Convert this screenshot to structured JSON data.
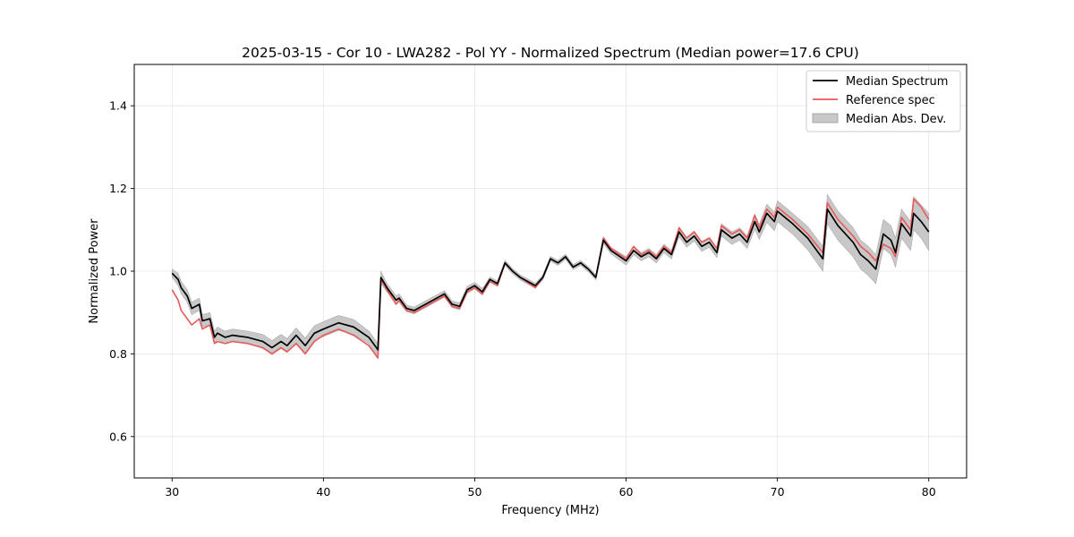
{
  "chart_data": {
    "type": "line",
    "title": "2025-03-15 - Cor 10 - LWA282 - Pol YY - Normalized Spectrum (Median power=17.6 CPU)",
    "xlabel": "Frequency (MHz)",
    "ylabel": "Normalized Power",
    "xlim": [
      27.5,
      82.5
    ],
    "ylim": [
      0.5,
      1.5
    ],
    "xticks": [
      30,
      40,
      50,
      60,
      70,
      80
    ],
    "yticks": [
      0.6,
      0.8,
      1.0,
      1.2,
      1.4
    ],
    "xtick_labels": [
      "30",
      "40",
      "50",
      "60",
      "70",
      "80"
    ],
    "ytick_labels": [
      "0.6",
      "0.8",
      "1.0",
      "1.2",
      "1.4"
    ],
    "grid": true,
    "legend_position": "top-right",
    "series": [
      {
        "name": "Median Spectrum",
        "color": "#000000",
        "x": [
          30.0,
          30.4,
          30.6,
          31.0,
          31.3,
          31.8,
          32.0,
          32.5,
          32.8,
          33.0,
          33.5,
          34.0,
          35.0,
          36.0,
          36.6,
          37.2,
          37.6,
          38.2,
          38.8,
          39.4,
          40.0,
          41.0,
          42.0,
          43.0,
          43.6,
          43.8,
          44.2,
          44.8,
          45.0,
          45.5,
          46.0,
          46.5,
          47.0,
          47.5,
          48.0,
          48.5,
          49.0,
          49.5,
          50.0,
          50.5,
          51.0,
          51.5,
          52.0,
          52.5,
          53.0,
          54.0,
          54.5,
          55.0,
          55.5,
          56.0,
          56.5,
          57.0,
          57.5,
          58.0,
          58.5,
          59.0,
          60.0,
          60.5,
          61.0,
          61.5,
          62.0,
          62.5,
          63.0,
          63.5,
          64.0,
          64.5,
          65.0,
          65.5,
          66.0,
          66.3,
          67.0,
          67.5,
          68.0,
          68.5,
          68.8,
          69.3,
          69.8,
          70.0,
          70.5,
          71.0,
          72.0,
          73.0,
          73.3,
          74.0,
          75.0,
          75.5,
          76.0,
          76.5,
          77.0,
          77.5,
          77.8,
          78.2,
          78.8,
          79.0,
          79.5,
          80.0
        ],
        "values": [
          0.995,
          0.98,
          0.96,
          0.94,
          0.91,
          0.92,
          0.88,
          0.885,
          0.84,
          0.85,
          0.84,
          0.845,
          0.84,
          0.83,
          0.815,
          0.83,
          0.82,
          0.845,
          0.82,
          0.85,
          0.86,
          0.875,
          0.865,
          0.84,
          0.81,
          0.985,
          0.96,
          0.93,
          0.935,
          0.91,
          0.905,
          0.915,
          0.925,
          0.935,
          0.945,
          0.92,
          0.915,
          0.955,
          0.965,
          0.95,
          0.98,
          0.97,
          1.02,
          1.0,
          0.985,
          0.965,
          0.985,
          1.03,
          1.02,
          1.035,
          1.01,
          1.02,
          1.005,
          0.985,
          1.075,
          1.05,
          1.025,
          1.05,
          1.035,
          1.045,
          1.03,
          1.055,
          1.04,
          1.095,
          1.07,
          1.085,
          1.06,
          1.07,
          1.045,
          1.1,
          1.08,
          1.09,
          1.07,
          1.12,
          1.095,
          1.14,
          1.12,
          1.145,
          1.13,
          1.115,
          1.08,
          1.03,
          1.15,
          1.11,
          1.07,
          1.04,
          1.025,
          1.005,
          1.09,
          1.075,
          1.045,
          1.115,
          1.085,
          1.14,
          1.12,
          1.095
        ]
      },
      {
        "name": "Reference spec",
        "color": "#e8595a",
        "x": [
          30.0,
          30.4,
          30.6,
          31.0,
          31.3,
          31.8,
          32.0,
          32.5,
          32.8,
          33.0,
          33.5,
          34.0,
          35.0,
          36.0,
          36.6,
          37.2,
          37.6,
          38.2,
          38.8,
          39.4,
          40.0,
          41.0,
          42.0,
          43.0,
          43.6,
          43.8,
          44.2,
          44.8,
          45.0,
          45.5,
          46.0,
          46.5,
          47.0,
          47.5,
          48.0,
          48.5,
          49.0,
          49.5,
          50.0,
          50.5,
          51.0,
          51.5,
          52.0,
          52.5,
          53.0,
          54.0,
          54.5,
          55.0,
          55.5,
          56.0,
          56.5,
          57.0,
          57.5,
          58.0,
          58.5,
          59.0,
          60.0,
          60.5,
          61.0,
          61.5,
          62.0,
          62.5,
          63.0,
          63.5,
          64.0,
          64.5,
          65.0,
          65.5,
          66.0,
          66.3,
          67.0,
          67.5,
          68.0,
          68.5,
          68.8,
          69.3,
          69.8,
          70.0,
          70.5,
          71.0,
          72.0,
          73.0,
          73.3,
          74.0,
          75.0,
          75.5,
          76.0,
          76.5,
          77.0,
          77.5,
          77.8,
          78.2,
          78.8,
          79.0,
          79.5,
          80.0
        ],
        "values": [
          0.955,
          0.93,
          0.905,
          0.885,
          0.87,
          0.885,
          0.86,
          0.87,
          0.825,
          0.83,
          0.825,
          0.83,
          0.825,
          0.815,
          0.8,
          0.815,
          0.805,
          0.825,
          0.8,
          0.83,
          0.845,
          0.86,
          0.845,
          0.82,
          0.79,
          0.98,
          0.955,
          0.92,
          0.93,
          0.905,
          0.9,
          0.91,
          0.92,
          0.93,
          0.94,
          0.915,
          0.91,
          0.95,
          0.96,
          0.945,
          0.975,
          0.965,
          1.02,
          1.0,
          0.985,
          0.96,
          0.985,
          1.03,
          1.02,
          1.035,
          1.01,
          1.02,
          1.005,
          0.985,
          1.08,
          1.055,
          1.03,
          1.06,
          1.04,
          1.05,
          1.035,
          1.06,
          1.045,
          1.105,
          1.08,
          1.095,
          1.07,
          1.08,
          1.055,
          1.11,
          1.09,
          1.1,
          1.08,
          1.135,
          1.105,
          1.15,
          1.13,
          1.155,
          1.14,
          1.125,
          1.09,
          1.045,
          1.165,
          1.125,
          1.085,
          1.06,
          1.045,
          1.025,
          1.065,
          1.055,
          1.035,
          1.13,
          1.1,
          1.175,
          1.155,
          1.125
        ]
      }
    ],
    "band": {
      "name": "Median Abs. Dev.",
      "color": "#c8c8c8",
      "half_width": [
        0.01,
        0.015,
        0.015,
        0.015,
        0.015,
        0.015,
        0.015,
        0.015,
        0.015,
        0.015,
        0.015,
        0.015,
        0.015,
        0.017,
        0.017,
        0.017,
        0.017,
        0.018,
        0.018,
        0.018,
        0.018,
        0.018,
        0.018,
        0.015,
        0.015,
        0.015,
        0.01,
        0.01,
        0.01,
        0.008,
        0.008,
        0.008,
        0.008,
        0.008,
        0.008,
        0.008,
        0.008,
        0.008,
        0.008,
        0.008,
        0.006,
        0.006,
        0.006,
        0.006,
        0.006,
        0.006,
        0.006,
        0.006,
        0.006,
        0.006,
        0.006,
        0.006,
        0.006,
        0.006,
        0.008,
        0.008,
        0.01,
        0.01,
        0.01,
        0.01,
        0.01,
        0.01,
        0.01,
        0.012,
        0.012,
        0.012,
        0.012,
        0.012,
        0.012,
        0.015,
        0.015,
        0.015,
        0.015,
        0.018,
        0.018,
        0.022,
        0.022,
        0.025,
        0.025,
        0.025,
        0.028,
        0.03,
        0.035,
        0.035,
        0.035,
        0.035,
        0.035,
        0.035,
        0.035,
        0.035,
        0.035,
        0.035,
        0.035,
        0.04,
        0.04,
        0.045
      ]
    },
    "legend": [
      "Median Spectrum",
      "Reference spec",
      "Median Abs. Dev."
    ]
  }
}
